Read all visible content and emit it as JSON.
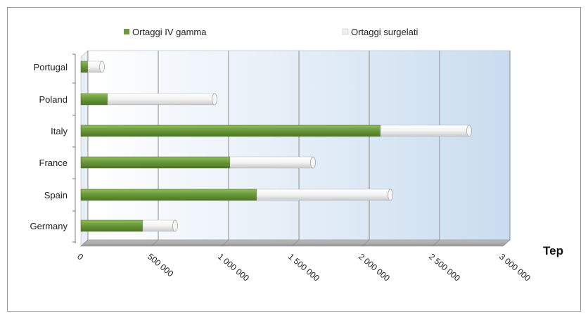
{
  "chart_data": {
    "type": "bar",
    "orientation": "horizontal",
    "stacked": true,
    "categories": [
      "Germany",
      "Spain",
      "France",
      "Italy",
      "Poland",
      "Portugal"
    ],
    "series": [
      {
        "name": "Ortaggi IV gamma",
        "color": "#6b9a3a",
        "values": [
          440000,
          1250000,
          1060000,
          2130000,
          190000,
          50000
        ]
      },
      {
        "name": "Ortaggi surgelati",
        "color": "#f0f0f0",
        "values": [
          230000,
          950000,
          590000,
          630000,
          760000,
          100000
        ]
      }
    ],
    "x_ticks": [
      "0",
      "500 000",
      "1 000 000",
      "1 500 000",
      "2 000 000",
      "2 500 000",
      "3 000 000"
    ],
    "xlim": [
      0,
      3000000
    ],
    "x_unit_label": "Tep",
    "legend_position": "top",
    "grid": true
  }
}
